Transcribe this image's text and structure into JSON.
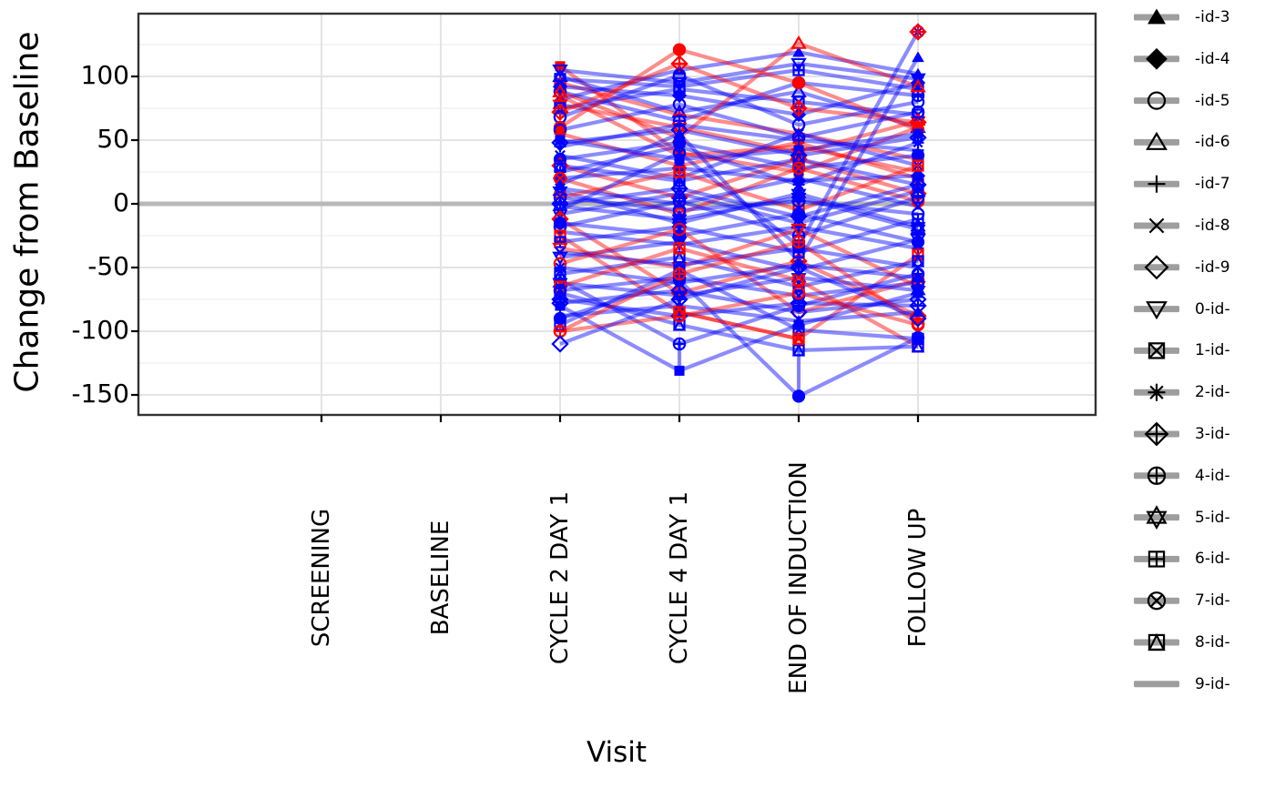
{
  "chart_data": {
    "type": "line",
    "title": "",
    "xlabel": "Visit",
    "ylabel": "Change from Baseline",
    "x_categories": [
      "SCREENING",
      "BASELINE",
      "CYCLE 2 DAY 1",
      "CYCLE 4 DAY 1",
      "END OF INDUCTION",
      "FOLLOW UP"
    ],
    "y_ticks": [
      100,
      50,
      0,
      -50,
      -100,
      -150
    ],
    "y_minor_ticks": [
      125,
      75,
      25,
      -25,
      -75,
      -125
    ],
    "ylim": [
      -168,
      149
    ],
    "zero_reference_line": 0,
    "grid": true,
    "legend_position": "right",
    "colors": {
      "red": "#ff0000",
      "blue": "#0000ff",
      "line_alpha": 0.45,
      "zero_line": "#b8b8b8",
      "grid_major": "#e4e4e4",
      "grid_minor": "#f2f2f2",
      "panel_border": "#333333",
      "tick": "#000000",
      "legend_key_line": "#9e9e9e",
      "legend_marker": "#000000"
    },
    "legend": [
      {
        "shape": "triangle-filled",
        "label": "-id-3"
      },
      {
        "shape": "diamond-filled",
        "label": "-id-4"
      },
      {
        "shape": "circle-open",
        "label": "-id-5"
      },
      {
        "shape": "triangle-open",
        "label": "-id-6"
      },
      {
        "shape": "plus",
        "label": "-id-7"
      },
      {
        "shape": "x",
        "label": "-id-8"
      },
      {
        "shape": "diamond-open",
        "label": "-id-9"
      },
      {
        "shape": "triangle-down-open",
        "label": "0-id-"
      },
      {
        "shape": "square-x",
        "label": "1-id-"
      },
      {
        "shape": "asterisk",
        "label": "2-id-"
      },
      {
        "shape": "diamond-plus",
        "label": "3-id-"
      },
      {
        "shape": "circle-plus",
        "label": "4-id-"
      },
      {
        "shape": "hexagram",
        "label": "5-id-"
      },
      {
        "shape": "square-plus",
        "label": "6-id-"
      },
      {
        "shape": "circle-x",
        "label": "7-id-"
      },
      {
        "shape": "square-triangle",
        "label": "8-id-"
      },
      {
        "shape": "line-only",
        "label": "9-id-"
      }
    ],
    "subjects": [
      {
        "shape": "square-filled",
        "color": "red",
        "values": [
          null,
          null,
          108,
          40,
          25,
          60
        ]
      },
      {
        "shape": "triangle-down-open",
        "color": "blue",
        "values": [
          null,
          null,
          105,
          95,
          110,
          98
        ]
      },
      {
        "shape": "triangle-open",
        "color": "blue",
        "values": [
          null,
          null,
          100,
          72,
          88,
          60
        ]
      },
      {
        "shape": "square-plus",
        "color": "blue",
        "values": [
          null,
          null,
          98,
          92,
          105,
          90
        ]
      },
      {
        "shape": "plus",
        "color": "red",
        "values": [
          null,
          null,
          95,
          70,
          55,
          35
        ]
      },
      {
        "shape": "diamond-filled",
        "color": "blue",
        "values": [
          null,
          null,
          92,
          85,
          70,
          95
        ]
      },
      {
        "shape": "circle-plus",
        "color": "blue",
        "values": [
          null,
          null,
          88,
          65,
          95,
          85
        ]
      },
      {
        "shape": "x",
        "color": "red",
        "values": [
          null,
          null,
          85,
          38,
          45,
          25
        ]
      },
      {
        "shape": "triangle-filled",
        "color": "blue",
        "values": [
          null,
          null,
          82,
          105,
          119,
          102
        ]
      },
      {
        "shape": "triangle-open",
        "color": "red",
        "values": [
          null,
          null,
          88,
          52,
          126,
          92
        ]
      },
      {
        "shape": "hexagram",
        "color": "red",
        "values": [
          null,
          null,
          78,
          60,
          40,
          65
        ]
      },
      {
        "shape": "square-x",
        "color": "blue",
        "values": [
          null,
          null,
          75,
          90,
          80,
          70
        ]
      },
      {
        "shape": "diamond-plus",
        "color": "red",
        "values": [
          null,
          null,
          72,
          110,
          75,
          64
        ]
      },
      {
        "shape": "circle-open",
        "color": "blue",
        "values": [
          null,
          null,
          68,
          101,
          62,
          80
        ]
      },
      {
        "shape": "circle-filled",
        "color": "red",
        "values": [
          null,
          null,
          60,
          121,
          95,
          58
        ]
      },
      {
        "shape": "circle-open",
        "color": "blue",
        "values": [
          null,
          null,
          58,
          78,
          52,
          72
        ]
      },
      {
        "shape": "asterisk",
        "color": "red",
        "values": [
          null,
          null,
          55,
          30,
          48,
          20
        ]
      },
      {
        "shape": "square-filled",
        "color": "blue",
        "values": [
          null,
          null,
          50,
          35,
          42,
          55
        ]
      },
      {
        "shape": "diamond-open",
        "color": "blue",
        "values": [
          null,
          null,
          48,
          58,
          38,
          52
        ]
      },
      {
        "shape": "plus",
        "color": "blue",
        "values": [
          null,
          null,
          45,
          62,
          50,
          42
        ]
      },
      {
        "shape": "x",
        "color": "blue",
        "values": [
          null,
          null,
          38,
          20,
          55,
          30
        ]
      },
      {
        "shape": "circle-filled",
        "color": "blue",
        "values": [
          null,
          null,
          35,
          48,
          28,
          38
        ]
      },
      {
        "shape": "diamond-open",
        "color": "red",
        "values": [
          null,
          null,
          30,
          5,
          35,
          8
        ]
      },
      {
        "shape": "square-triangle",
        "color": "blue",
        "values": [
          null,
          null,
          30,
          18,
          35,
          15
        ]
      },
      {
        "shape": "asterisk",
        "color": "blue",
        "values": [
          null,
          null,
          25,
          45,
          15,
          48
        ]
      },
      {
        "shape": "diamond-filled",
        "color": "blue",
        "values": [
          null,
          null,
          20,
          28,
          18,
          22
        ]
      },
      {
        "shape": "circle-x",
        "color": "red",
        "values": [
          null,
          null,
          20,
          -8,
          28,
          2
        ]
      },
      {
        "shape": "triangle-filled",
        "color": "blue",
        "values": [
          null,
          null,
          15,
          55,
          -45,
          115
        ]
      },
      {
        "shape": "x",
        "color": "blue",
        "values": [
          null,
          null,
          12,
          0,
          20,
          -2
        ]
      },
      {
        "shape": "hexagram",
        "color": "blue",
        "values": [
          null,
          null,
          10,
          -15,
          8,
          -18
        ]
      },
      {
        "shape": "square-plus",
        "color": "red",
        "values": [
          null,
          null,
          5,
          25,
          -5,
          30
        ]
      },
      {
        "shape": "circle-open",
        "color": "blue",
        "values": [
          null,
          null,
          5,
          -5,
          2,
          -8
        ]
      },
      {
        "shape": "diamond-plus",
        "color": "blue",
        "values": [
          null,
          null,
          0,
          12,
          -10,
          15
        ]
      },
      {
        "shape": "hexagram",
        "color": "blue",
        "values": [
          null,
          null,
          -2,
          -12,
          5,
          -20
        ]
      },
      {
        "shape": "circle-x",
        "color": "blue",
        "values": [
          null,
          null,
          -5,
          40,
          -33,
          135
        ]
      },
      {
        "shape": "triangle-open",
        "color": "blue",
        "values": [
          null,
          null,
          -8,
          8,
          -15,
          10
        ]
      },
      {
        "shape": "diamond-plus",
        "color": "red",
        "values": [
          null,
          null,
          -12,
          -70,
          -45,
          -88
        ]
      },
      {
        "shape": "circle-filled",
        "color": "blue",
        "values": [
          null,
          null,
          -15,
          -25,
          -8,
          -30
        ]
      },
      {
        "shape": "circle-plus",
        "color": "blue",
        "values": [
          null,
          null,
          -18,
          2,
          -25,
          5
        ]
      },
      {
        "shape": "plus",
        "color": "blue",
        "values": [
          null,
          null,
          -22,
          -32,
          -18,
          -35
        ]
      },
      {
        "shape": "square-x",
        "color": "red",
        "values": [
          null,
          null,
          -25,
          -85,
          -106,
          -40
        ]
      },
      {
        "shape": "square-plus",
        "color": "blue",
        "values": [
          null,
          null,
          -30,
          -18,
          -38,
          -12
        ]
      },
      {
        "shape": "triangle-down-open",
        "color": "red",
        "values": [
          null,
          null,
          -35,
          -50,
          -20,
          -65
        ]
      },
      {
        "shape": "x",
        "color": "blue",
        "values": [
          null,
          null,
          -38,
          -48,
          -35,
          -50
        ]
      },
      {
        "shape": "triangle-down-open",
        "color": "blue",
        "values": [
          null,
          null,
          -42,
          -30,
          -52,
          -28
        ]
      },
      {
        "shape": "circle-open",
        "color": "red",
        "values": [
          null,
          null,
          -47,
          -20,
          -85,
          -60
        ]
      },
      {
        "shape": "asterisk",
        "color": "blue",
        "values": [
          null,
          null,
          -50,
          -62,
          -48,
          -58
        ]
      },
      {
        "shape": "square-triangle",
        "color": "blue",
        "values": [
          null,
          null,
          -55,
          -42,
          -65,
          -45
        ]
      },
      {
        "shape": "circle-plus",
        "color": "blue",
        "values": [
          null,
          null,
          -60,
          -110,
          -80,
          -55
        ]
      },
      {
        "shape": "hexagram",
        "color": "blue",
        "values": [
          null,
          null,
          -62,
          -72,
          -58,
          -68
        ]
      },
      {
        "shape": "square-triangle",
        "color": "red",
        "values": [
          null,
          null,
          -65,
          -35,
          -60,
          -112
        ]
      },
      {
        "shape": "circle-x",
        "color": "blue",
        "values": [
          null,
          null,
          -68,
          -58,
          -72,
          -62
        ]
      },
      {
        "shape": "square-triangle",
        "color": "blue",
        "values": [
          null,
          null,
          -70,
          -95,
          -115,
          -112
        ]
      },
      {
        "shape": "diamond-open",
        "color": "blue",
        "values": [
          null,
          null,
          -78,
          -68,
          -85,
          -75
        ]
      },
      {
        "shape": "square-filled",
        "color": "blue",
        "values": [
          null,
          null,
          -80,
          -131,
          -95,
          -70
        ]
      },
      {
        "shape": "diamond-plus",
        "color": "blue",
        "values": [
          null,
          null,
          -75,
          -88,
          -78,
          -80
        ]
      },
      {
        "shape": "triangle-filled",
        "color": "blue",
        "values": [
          null,
          null,
          -88,
          -80,
          -92,
          -85
        ]
      },
      {
        "shape": "circle-filled",
        "color": "blue",
        "values": [
          null,
          null,
          -90,
          -60,
          -151,
          -105
        ]
      },
      {
        "shape": "square-x",
        "color": "blue",
        "values": [
          null,
          null,
          -95,
          -52,
          -99,
          -106
        ]
      },
      {
        "shape": "circle-open",
        "color": "red",
        "values": [
          null,
          null,
          -100,
          -88,
          -70,
          -95
        ]
      },
      {
        "shape": "circle-plus",
        "color": "red",
        "values": [
          null,
          null,
          -100,
          -55,
          -30,
          -94
        ]
      },
      {
        "shape": "diamond-open",
        "color": "blue",
        "values": [
          null,
          null,
          -110,
          -75,
          -50,
          -90
        ]
      },
      {
        "shape": "square-triangle",
        "color": "red",
        "values": [
          null,
          null,
          null,
          -85,
          -106,
          null
        ]
      },
      {
        "shape": "diamond-plus",
        "color": "red",
        "values": [
          null,
          null,
          null,
          null,
          null,
          135
        ]
      }
    ],
    "vertical_segments": [
      {
        "visit": 3,
        "from": -108,
        "to": -131,
        "color": "blue"
      },
      {
        "visit": 4,
        "from": -113,
        "to": -151,
        "color": "blue"
      }
    ]
  }
}
